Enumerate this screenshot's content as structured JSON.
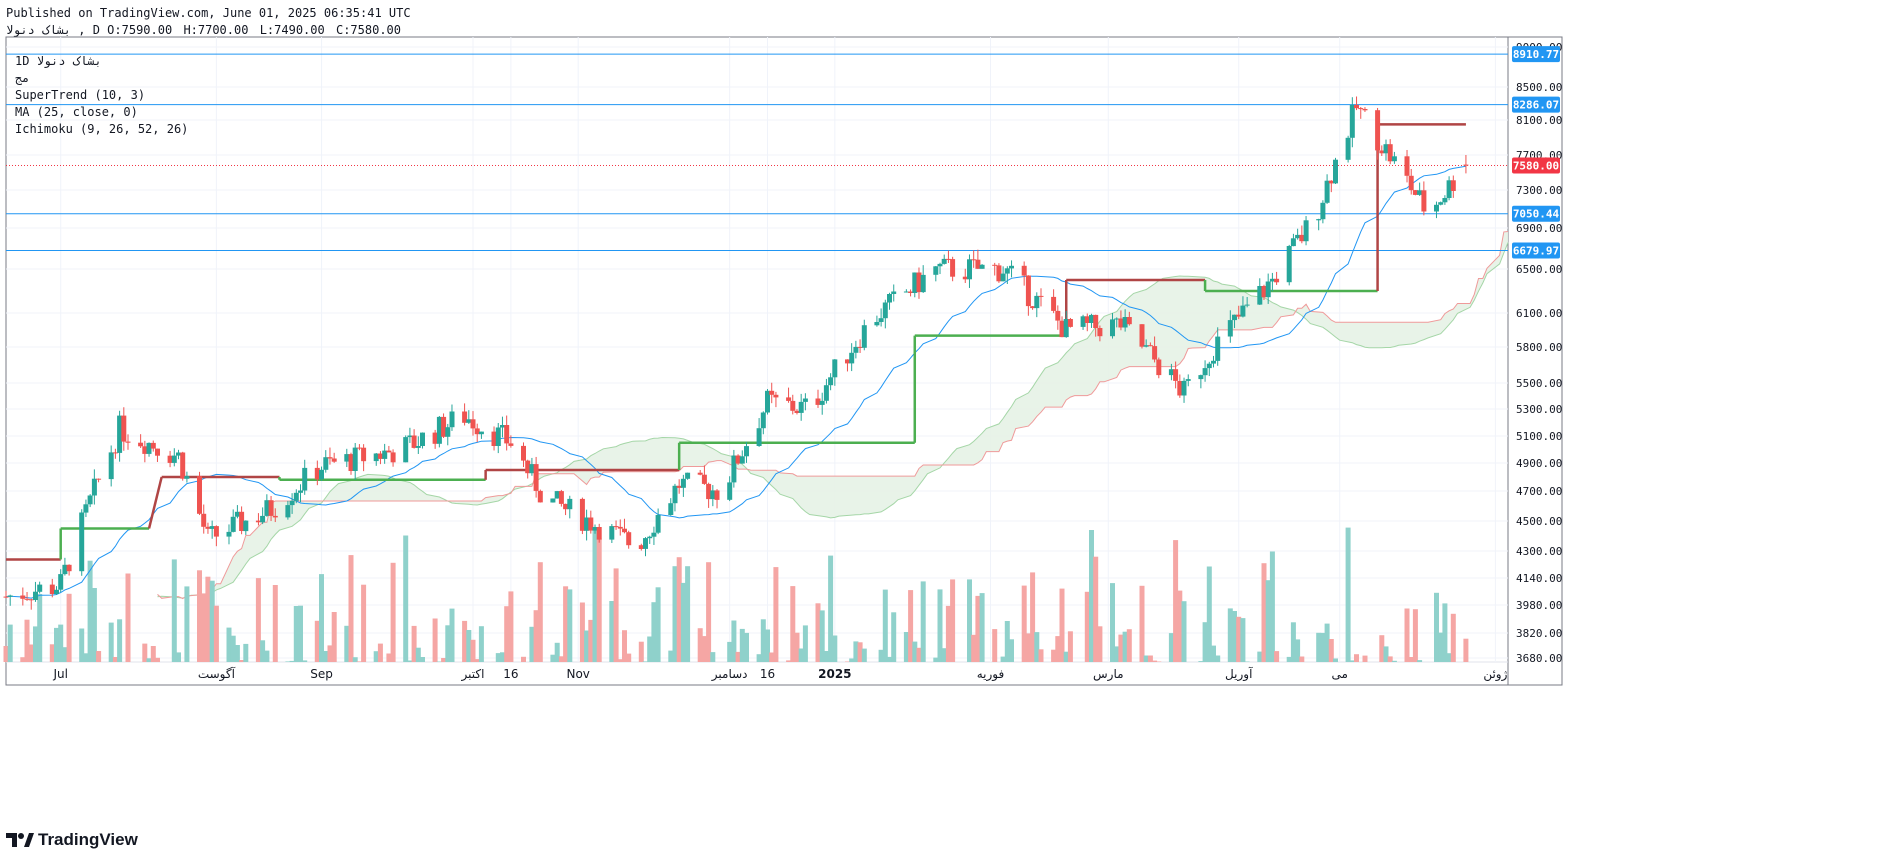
{
  "header": {
    "published": "Published on TradingView.com, June 01, 2025 06:35:41 UTC",
    "symbol": "بشاک  دنولا , D",
    "ohlc": {
      "o": "O:7590.00",
      "h": "H:7700.00",
      "l": "L:7490.00",
      "c": "C:7580.00"
    }
  },
  "legend": {
    "symbol": "1D  بشاک  دنولا",
    "extra": "مج",
    "supertrend": "SuperTrend (10, 3)",
    "ma": "MA (25, close, 0)",
    "ichimoku": "Ichimoku (9, 26, 52, 26)"
  },
  "logo": "TradingView",
  "colors": {
    "up": "#26a69a",
    "down": "#ef5350",
    "up_vol": "#8fd1cb",
    "down_vol": "#f5a6a4",
    "st_up": "#4caf50",
    "st_down": "#b04545",
    "ma": "#2196f3",
    "cloud_green": "#e6f2e6",
    "cloud_red": "#fadcdc",
    "hline": "#2196f3",
    "price_line": "#f23645"
  },
  "chart_data": {
    "type": "candlestick",
    "x_ticks": [
      "Jul",
      "آگوست",
      "Sep",
      "اکتبر",
      "16",
      "Nov",
      "دسامبر",
      "16",
      "2025",
      "فوریه",
      "مارس",
      "آوریل",
      "می",
      "ژوئن"
    ],
    "y_ticks": [
      3680,
      3820,
      3980,
      4140,
      4300,
      4500,
      4700,
      4900,
      5100,
      5300,
      5500,
      5800,
      6100,
      6500,
      6900,
      7300,
      7700,
      8100,
      8500,
      9000
    ],
    "y_tick_labels": [
      "3680.00",
      "3820.00",
      "3980.00",
      "4140.00",
      "4300.00",
      "4500.00",
      "4700.00",
      "4900.00",
      "5100.00",
      "5300.00",
      "5500.00",
      "5800.00",
      "6100.00",
      "6500.00",
      "6900.00",
      "7300.00",
      "7700.00",
      "8100.00",
      "8500.00",
      "9000.00"
    ],
    "horizontal_lines": [
      {
        "value": 8910.77,
        "label": "8910.77"
      },
      {
        "value": 8286.07,
        "label": "8286.07"
      },
      {
        "value": 7050.44,
        "label": "7050.44"
      },
      {
        "value": 6679.97,
        "label": "6679.97"
      }
    ],
    "last_price": {
      "value": 7580.0,
      "label": "7580.00"
    },
    "period_anchors": [
      {
        "date": "2024-06-18",
        "price": 4030
      },
      {
        "date": "2024-07-01",
        "price": 4100
      },
      {
        "date": "2024-07-15",
        "price": 5150
      },
      {
        "date": "2024-07-29",
        "price": 4950
      },
      {
        "date": "2024-08-05",
        "price": 4380
      },
      {
        "date": "2024-08-20",
        "price": 4580
      },
      {
        "date": "2024-09-01",
        "price": 4880
      },
      {
        "date": "2024-09-20",
        "price": 5000
      },
      {
        "date": "2024-10-05",
        "price": 5250
      },
      {
        "date": "2024-10-16",
        "price": 5050
      },
      {
        "date": "2024-10-24",
        "price": 4650
      },
      {
        "date": "2024-11-05",
        "price": 4480
      },
      {
        "date": "2024-11-15",
        "price": 4330
      },
      {
        "date": "2024-11-25",
        "price": 4750
      },
      {
        "date": "2024-12-05",
        "price": 4700
      },
      {
        "date": "2024-12-16",
        "price": 5350
      },
      {
        "date": "2024-12-26",
        "price": 5300
      },
      {
        "date": "2025-01-10",
        "price": 6050
      },
      {
        "date": "2025-01-25",
        "price": 6500
      },
      {
        "date": "2025-02-10",
        "price": 6500
      },
      {
        "date": "2025-02-25",
        "price": 5950
      },
      {
        "date": "2025-03-10",
        "price": 6000
      },
      {
        "date": "2025-03-25",
        "price": 5420
      },
      {
        "date": "2025-04-01",
        "price": 5800
      },
      {
        "date": "2025-04-15",
        "price": 6400
      },
      {
        "date": "2025-04-25",
        "price": 7000
      },
      {
        "date": "2025-05-05",
        "price": 8250
      },
      {
        "date": "2025-05-15",
        "price": 7550
      },
      {
        "date": "2025-05-22",
        "price": 7050
      },
      {
        "date": "2025-05-31",
        "price": 7580
      }
    ],
    "supertrend": [
      {
        "from": "2024-06-18",
        "to": "2024-07-01",
        "value": 4250,
        "dir": "down"
      },
      {
        "from": "2024-07-01",
        "to": "2024-07-22",
        "value": 4450,
        "dir": "up"
      },
      {
        "from": "2024-07-25",
        "to": "2024-08-22",
        "value": 4800,
        "dir": "down"
      },
      {
        "from": "2024-08-22",
        "to": "2024-10-10",
        "value": 4780,
        "dir": "up"
      },
      {
        "from": "2024-10-10",
        "to": "2024-11-25",
        "value": 4850,
        "dir": "down"
      },
      {
        "from": "2024-11-25",
        "to": "2025-01-20",
        "value": 5050,
        "dir": "up"
      },
      {
        "from": "2025-01-20",
        "to": "2025-02-25",
        "value": 5900,
        "dir": "up"
      },
      {
        "from": "2025-02-25",
        "to": "2025-03-30",
        "value": 6400,
        "dir": "down"
      },
      {
        "from": "2025-03-30",
        "to": "2025-05-10",
        "value": 6300,
        "dir": "up"
      },
      {
        "from": "2025-05-10",
        "to": "2025-05-31",
        "value": 8050,
        "dir": "down"
      }
    ],
    "moving_average": {
      "name": "MA (25, close, 0)",
      "period": 25
    },
    "volume": {
      "min": 3600,
      "max": 4650
    }
  }
}
